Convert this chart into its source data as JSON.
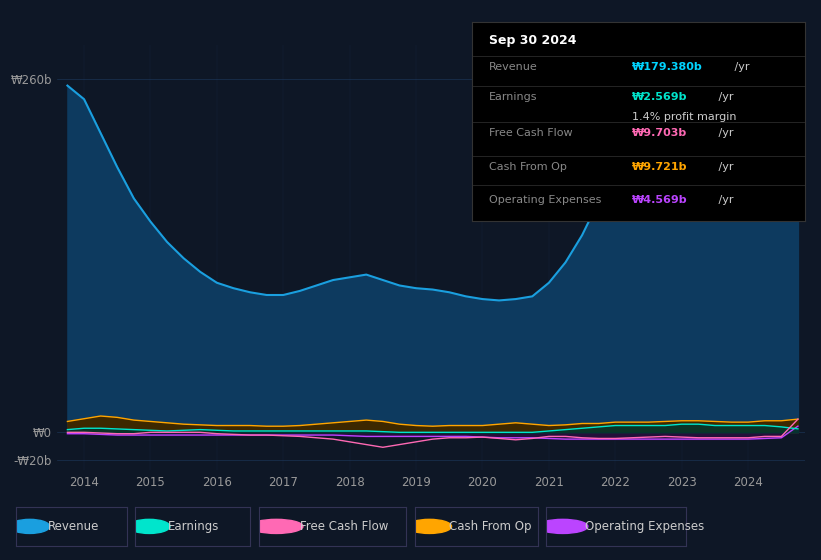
{
  "bg_color": "#0e1726",
  "plot_bg_color": "#0e1726",
  "grid_color": "#1e3a5f",
  "title_box": {
    "date": "Sep 30 2024",
    "revenue_label": "Revenue",
    "revenue_value": "₩179.380b",
    "revenue_color": "#00d4ff",
    "earnings_label": "Earnings",
    "earnings_value": "₩2.569b",
    "earnings_color": "#00e5cc",
    "profit_margin": "1.4% profit margin",
    "fcf_label": "Free Cash Flow",
    "fcf_value": "₩9.703b",
    "fcf_color": "#ff69b4",
    "cashop_label": "Cash From Op",
    "cashop_value": "₩9.721b",
    "cashop_color": "#ffa500",
    "opex_label": "Operating Expenses",
    "opex_value": "₩4.569b",
    "opex_color": "#bb44ff"
  },
  "years": [
    2013.75,
    2014.0,
    2014.25,
    2014.5,
    2014.75,
    2015.0,
    2015.25,
    2015.5,
    2015.75,
    2016.0,
    2016.25,
    2016.5,
    2016.75,
    2017.0,
    2017.25,
    2017.5,
    2017.75,
    2018.0,
    2018.25,
    2018.5,
    2018.75,
    2019.0,
    2019.25,
    2019.5,
    2019.75,
    2020.0,
    2020.25,
    2020.5,
    2020.75,
    2021.0,
    2021.25,
    2021.5,
    2021.75,
    2022.0,
    2022.25,
    2022.5,
    2022.75,
    2023.0,
    2023.25,
    2023.5,
    2023.75,
    2024.0,
    2024.25,
    2024.5,
    2024.75
  ],
  "revenue": [
    255,
    245,
    220,
    195,
    172,
    155,
    140,
    128,
    118,
    110,
    106,
    103,
    101,
    101,
    104,
    108,
    112,
    114,
    116,
    112,
    108,
    106,
    105,
    103,
    100,
    98,
    97,
    98,
    100,
    110,
    125,
    145,
    170,
    195,
    212,
    228,
    237,
    241,
    239,
    233,
    226,
    212,
    196,
    182,
    179
  ],
  "earnings": [
    2,
    3,
    3,
    2.5,
    2,
    1.5,
    1,
    1.5,
    2,
    1.5,
    1,
    1,
    1,
    1,
    1,
    1,
    1,
    1,
    1,
    0.5,
    0,
    0,
    0,
    0,
    0,
    0,
    0,
    0,
    0,
    1,
    2,
    3,
    4,
    5,
    5,
    5,
    5,
    6,
    6,
    5,
    5,
    5,
    5,
    4,
    2.569
  ],
  "free_cash_flow": [
    0,
    0,
    -0.5,
    -1,
    -1,
    0,
    0,
    0,
    0,
    -1,
    -1.5,
    -2,
    -2,
    -2.5,
    -3,
    -4,
    -5,
    -7,
    -9,
    -11,
    -9,
    -7,
    -5,
    -4,
    -4,
    -3.5,
    -4.5,
    -5.5,
    -4.5,
    -3,
    -3,
    -4,
    -4.5,
    -4.5,
    -4,
    -3.5,
    -3,
    -3.5,
    -4,
    -4,
    -4,
    -4,
    -3,
    -3,
    9.703
  ],
  "cash_from_op": [
    8,
    10,
    12,
    11,
    9,
    8,
    7,
    6,
    5.5,
    5,
    5,
    5,
    4.5,
    4.5,
    5,
    6,
    7,
    8,
    9,
    8,
    6,
    5,
    4.5,
    5,
    5,
    5,
    6,
    7,
    6,
    5,
    5.5,
    6.5,
    6.5,
    7.5,
    7.5,
    7.5,
    8,
    8.5,
    8.5,
    8,
    7.5,
    7.5,
    8.5,
    8.5,
    9.721
  ],
  "operating_expenses": [
    -1,
    -1,
    -1.5,
    -2,
    -2,
    -2,
    -2,
    -2,
    -2,
    -2,
    -2,
    -2,
    -2,
    -2,
    -2,
    -2,
    -2,
    -2.5,
    -3,
    -3,
    -3,
    -3,
    -3,
    -3,
    -3,
    -3.5,
    -4,
    -4,
    -4,
    -4.5,
    -5,
    -5,
    -5,
    -5,
    -5,
    -5,
    -5,
    -5,
    -5,
    -5,
    -5,
    -5,
    -4.5,
    -4,
    4.569
  ],
  "revenue_color": "#1a9fdf",
  "revenue_fill": "#0d3a5f",
  "earnings_color": "#00e5cc",
  "earnings_fill": "#003830",
  "fcf_color": "#ff69b4",
  "cashop_color": "#ffa500",
  "cashop_fill": "#3d2800",
  "opex_color": "#bb44ff",
  "opex_fill": "#2a0d40",
  "legend_items": [
    {
      "label": "Revenue",
      "color": "#1a9fdf"
    },
    {
      "label": "Earnings",
      "color": "#00e5cc"
    },
    {
      "label": "Free Cash Flow",
      "color": "#ff69b4"
    },
    {
      "label": "Cash From Op",
      "color": "#ffa500"
    },
    {
      "label": "Operating Expenses",
      "color": "#bb44ff"
    }
  ]
}
